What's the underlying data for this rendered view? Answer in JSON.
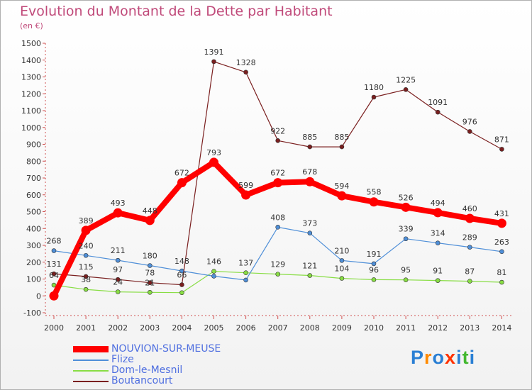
{
  "chart_data": {
    "type": "line",
    "title": "Evolution du Montant de la Dette par Habitant",
    "subtitle": "(en €)",
    "x": [
      "2000",
      "2001",
      "2002",
      "2003",
      "2004",
      "2005",
      "2006",
      "2007",
      "2008",
      "2009",
      "2010",
      "2011",
      "2012",
      "2013",
      "2014"
    ],
    "ylim": [
      -100,
      1500
    ],
    "yticks": [
      -100,
      0,
      100,
      200,
      300,
      400,
      500,
      600,
      700,
      800,
      900,
      1000,
      1100,
      1200,
      1300,
      1400,
      1500
    ],
    "grid": false,
    "legend_position": "bottom-left",
    "series": [
      {
        "name": "NOUVION-SUR-MEUSE",
        "color": "#ff0000",
        "values": [
          0,
          389,
          493,
          448,
          672,
          793,
          599,
          672,
          678,
          594,
          558,
          526,
          494,
          460,
          431
        ],
        "labels": [
          null,
          "389",
          "493",
          "448",
          "672",
          "793",
          "599",
          "672",
          "678",
          "594",
          "558",
          "526",
          "494",
          "460",
          "431"
        ]
      },
      {
        "name": "Flize",
        "color": "#4f8fd8",
        "values": [
          268,
          240,
          211,
          180,
          148,
          117,
          94,
          408,
          373,
          210,
          191,
          339,
          314,
          289,
          263
        ],
        "labels": [
          "268",
          "240",
          "211",
          "180",
          "148",
          null,
          null,
          "408",
          "373",
          "210",
          "191",
          "339",
          "314",
          "289",
          "263"
        ]
      },
      {
        "name": "Dom-le-Mesnil",
        "color": "#88dd44",
        "values": [
          64,
          38,
          24,
          21,
          19,
          146,
          137,
          129,
          121,
          104,
          96,
          95,
          91,
          87,
          81
        ],
        "labels": [
          "64",
          "38",
          "24",
          "21",
          null,
          "146",
          "137",
          "129",
          "121",
          "104",
          "96",
          "95",
          "91",
          "87",
          "81"
        ]
      },
      {
        "name": "Boutancourt",
        "color": "#7a1f1f",
        "values": [
          131,
          115,
          97,
          78,
          66,
          1391,
          1328,
          922,
          885,
          885,
          1180,
          1225,
          1091,
          976,
          871
        ],
        "labels": [
          "131",
          "115",
          "97",
          "78",
          "66",
          "1391",
          "1328",
          "922",
          "885",
          "885",
          "1180",
          "1225",
          "1091",
          "976",
          "871"
        ]
      }
    ]
  },
  "legend": {
    "items": [
      {
        "label": "NOUVION-SUR-MEUSE"
      },
      {
        "label": "Flize"
      },
      {
        "label": "Dom-le-Mesnil"
      },
      {
        "label": "Boutancourt"
      }
    ]
  },
  "watermark": {
    "letters": [
      "P",
      "r",
      "o",
      "x",
      "i",
      "t",
      "i"
    ],
    "colors": [
      "#2a7fd4",
      "#ff8a00",
      "#2a7fd4",
      "#ff3300",
      "#2a7fd4",
      "#44b830",
      "#2a7fd4"
    ]
  }
}
